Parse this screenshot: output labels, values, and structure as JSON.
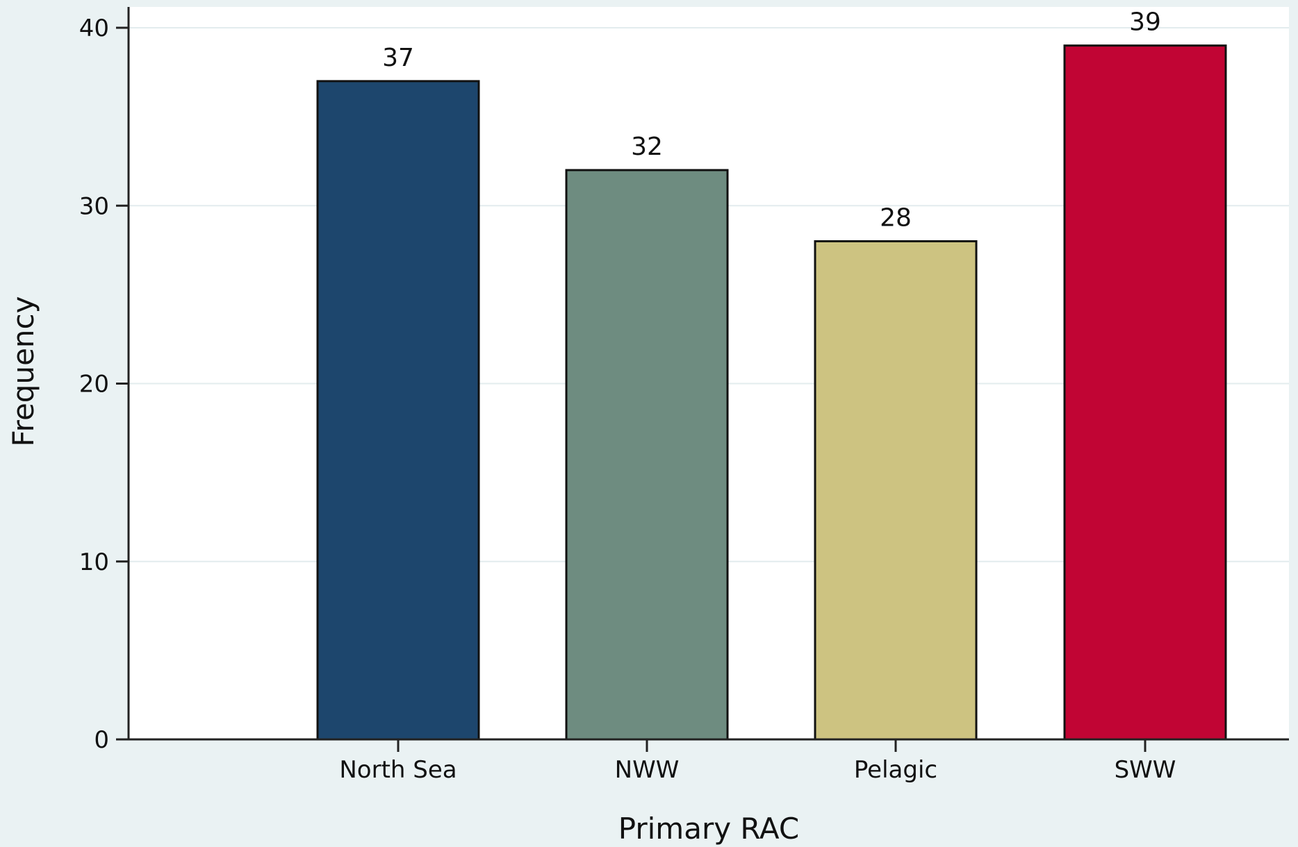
{
  "chart_data": {
    "type": "bar",
    "title": "",
    "xlabel": "Primary RAC",
    "ylabel": "Frequency",
    "categories": [
      "North Sea",
      "NWW",
      "Pelagic",
      "SWW"
    ],
    "values": [
      37,
      32,
      28,
      39
    ],
    "data_labels": [
      "37",
      "32",
      "28",
      "39"
    ],
    "colors": [
      "#1d466d",
      "#6e8c80",
      "#cdc381",
      "#c10534"
    ],
    "ylim": [
      0,
      40
    ],
    "yticks": [
      0,
      10,
      20,
      30,
      40
    ],
    "ytick_labels": [
      "0",
      "10",
      "20",
      "30",
      "40"
    ],
    "grid": true,
    "legend": "none"
  },
  "colors": {
    "page_background": "#eaf2f3",
    "plot_background": "#ffffff",
    "gridline": "#e3ecee"
  }
}
